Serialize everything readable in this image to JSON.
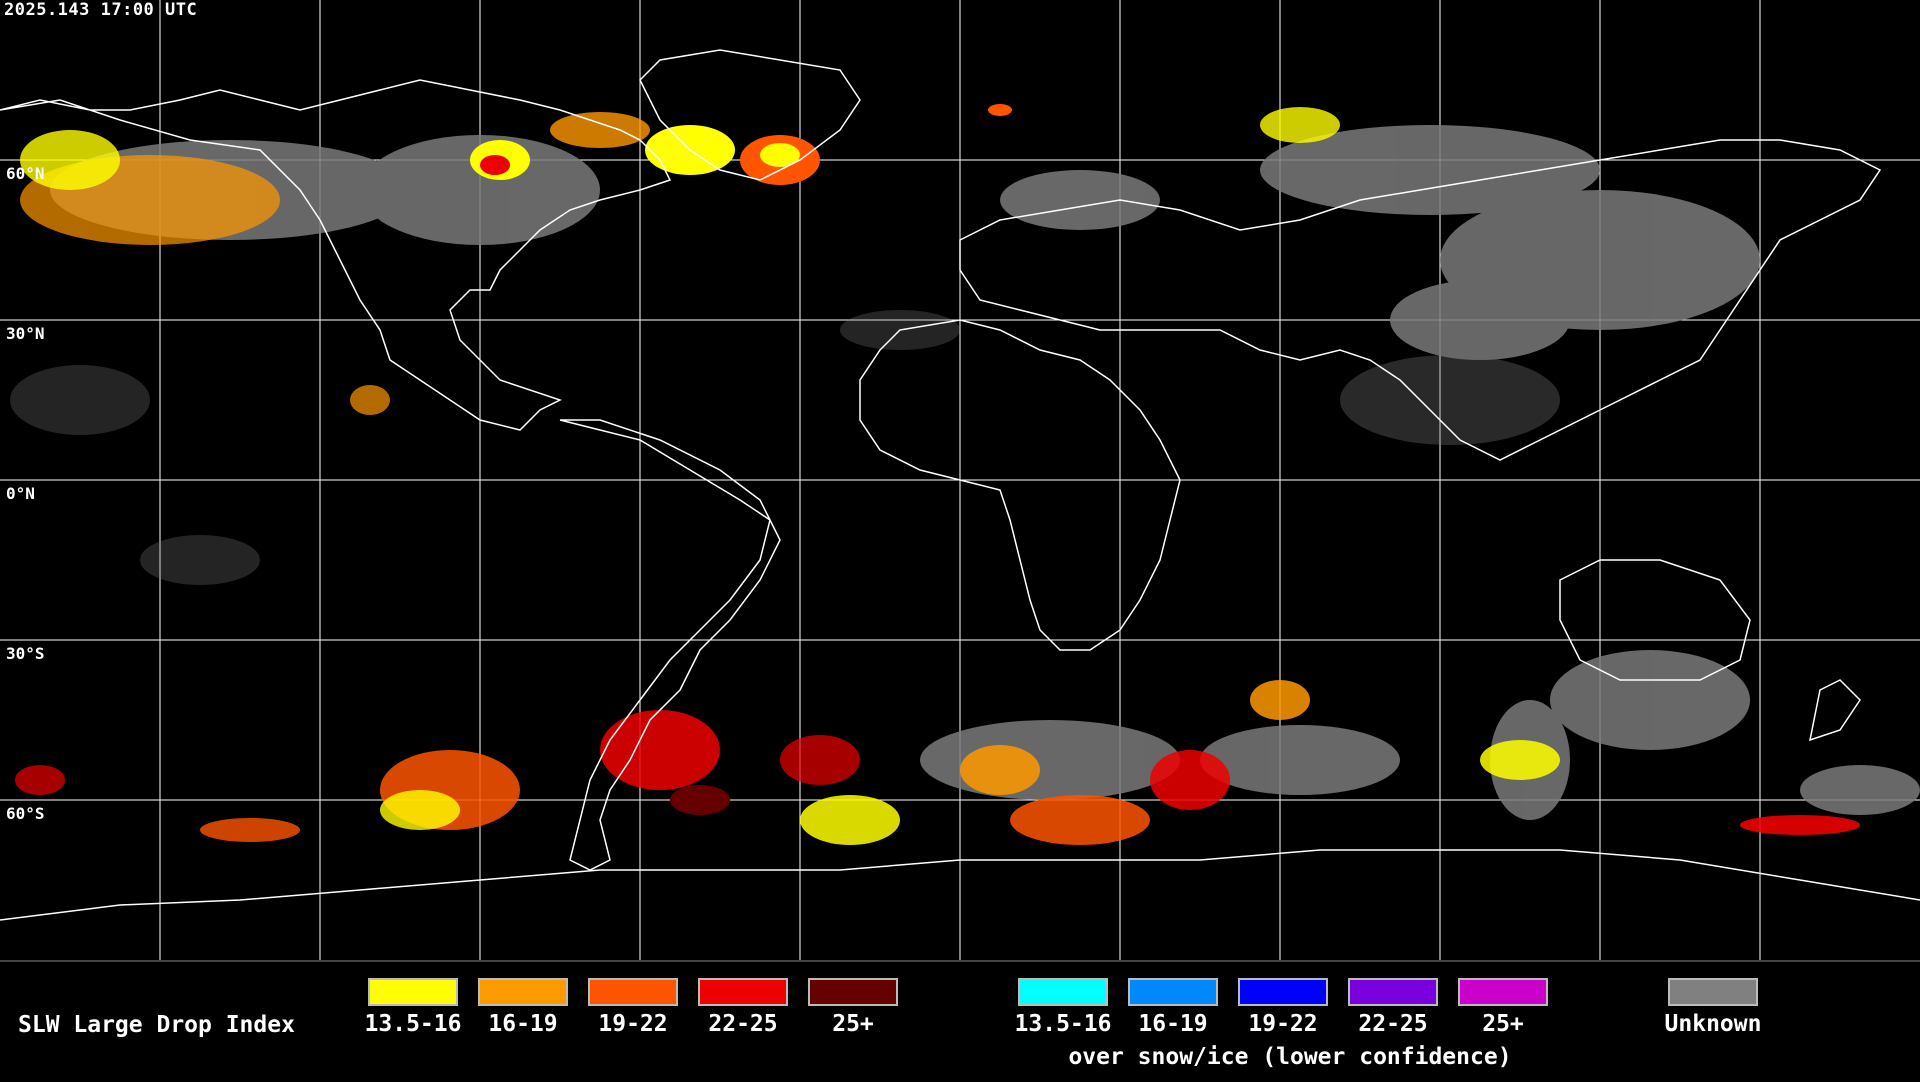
{
  "timestamp": "2025.143 17:00 UTC",
  "lat_labels": [
    "60°N",
    "30°N",
    "0°N",
    "30°S",
    "60°S"
  ],
  "legend": {
    "title": "SLW Large Drop Index",
    "normal_ranges": [
      {
        "label": "13.5-16",
        "color": "#ffff00"
      },
      {
        "label": "16-19",
        "color": "#ff9900"
      },
      {
        "label": "19-22",
        "color": "#ff5500"
      },
      {
        "label": "22-25",
        "color": "#ee0000"
      },
      {
        "label": "25+",
        "color": "#660000"
      }
    ],
    "snow_ice_ranges": [
      {
        "label": "13.5-16",
        "color": "#00ffff"
      },
      {
        "label": "16-19",
        "color": "#0088ff"
      },
      {
        "label": "19-22",
        "color": "#0000ff"
      },
      {
        "label": "22-25",
        "color": "#7700dd"
      },
      {
        "label": "25+",
        "color": "#cc00cc"
      }
    ],
    "snow_ice_note": "over snow/ice (lower confidence)",
    "unknown": {
      "label": "Unknown",
      "color": "#808080"
    }
  }
}
